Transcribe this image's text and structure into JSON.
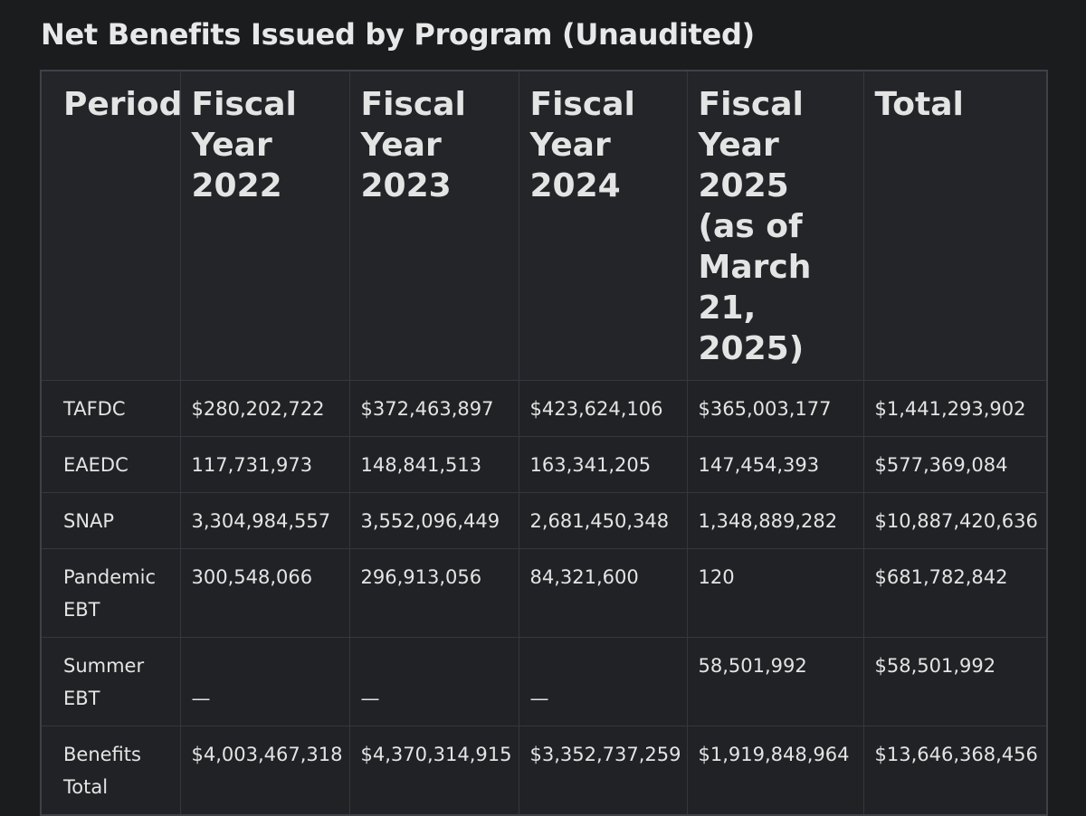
{
  "title": "Net Benefits Issued by Program (Unaudited)",
  "table": {
    "header": [
      "Period",
      "Fiscal Year 2022",
      "Fiscal Year 2023",
      "Fiscal Year 2024",
      "Fiscal Year 2025 (as of March 21, 2025)",
      "Total"
    ],
    "rows": [
      [
        "TAFDC",
        "$280,202,722",
        "$372,463,897",
        "$423,624,106",
        "$365,003,177",
        "$1,441,293,902"
      ],
      [
        "EAEDC",
        "117,731,973",
        "148,841,513",
        "163,341,205",
        "147,454,393",
        "$577,369,084"
      ],
      [
        "SNAP",
        "3,304,984,557",
        "3,552,096,449",
        "2,681,450,348",
        "1,348,889,282",
        "$10,887,420,636"
      ],
      [
        "Pandemic EBT",
        "300,548,066",
        "296,913,056",
        "84,321,600",
        "120",
        "$681,782,842"
      ],
      [
        "Summer EBT",
        "—",
        "—",
        "—",
        "58,501,992",
        "$58,501,992"
      ],
      [
        "Benefits Total",
        "$4,003,467,318",
        "$4,370,314,915",
        "$3,352,737,259",
        "$1,919,848,964",
        "$13,646,368,456"
      ]
    ]
  }
}
